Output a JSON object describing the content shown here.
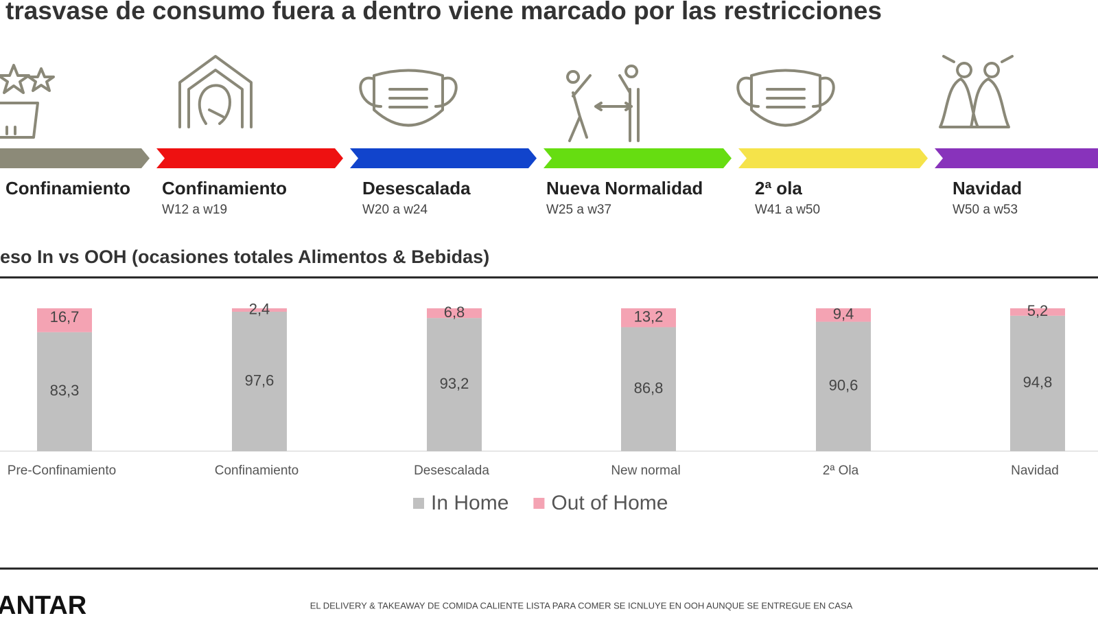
{
  "header": {
    "title": "trasvase de consumo fuera a dentro viene marcado por las restricciones"
  },
  "timeline": [
    {
      "label": "Confinamiento",
      "color": "#8c8a78"
    },
    {
      "label": "Confinamiento",
      "weeks": "W12 a w19",
      "color": "#ee1111"
    },
    {
      "label": "Desescalada",
      "weeks": "W20 a w24",
      "color": "#1144cc"
    },
    {
      "label": "Nueva Normalidad",
      "weeks": "W25 a w37",
      "color": "#66dd11"
    },
    {
      "label": "2ª ola",
      "weeks": "W41 a w50",
      "color": "#f5e34a"
    },
    {
      "label": "Navidad",
      "weeks": "W50 a w53",
      "color": "#8833bb"
    }
  ],
  "chart_data": {
    "type": "bar",
    "stacked": true,
    "title": "eso In vs OOH (ocasiones totales Alimentos & Bebidas)",
    "categories": [
      "Pre-Confinamiento",
      "Confinamiento",
      "Desescalada",
      "New normal",
      "2ª Ola",
      "Navidad"
    ],
    "series": [
      {
        "name": "In Home",
        "color": "#c0c0c0",
        "values": [
          83.3,
          97.6,
          93.2,
          86.8,
          90.6,
          94.8
        ],
        "value_labels": [
          "83,3",
          "97,6",
          "93,2",
          "86,8",
          "90,6",
          "94,8"
        ]
      },
      {
        "name": "Out of Home",
        "color": "#f4a3b3",
        "values": [
          16.7,
          2.4,
          6.8,
          13.2,
          9.4,
          5.2
        ],
        "value_labels": [
          "16,7",
          "2,4",
          "6,8",
          "13,2",
          "9,4",
          "5,2"
        ]
      }
    ],
    "ylim": [
      0,
      100
    ]
  },
  "footer": {
    "brand": "ANTAR",
    "note": "EL DELIVERY & TAKEAWAY DE COMIDA CALIENTE LISTA PARA COMER SE ICNLUYE EN OOH AUNQUE SE ENTREGUE EN CASA"
  }
}
